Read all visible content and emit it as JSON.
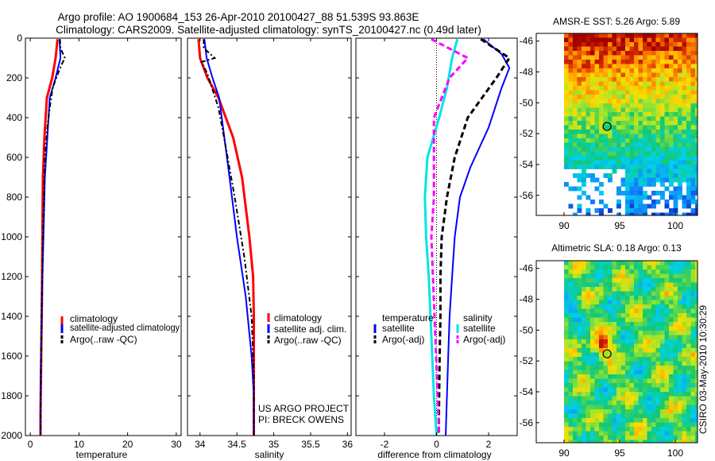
{
  "title_line1": "Argo profile: AO 1900684_153 26-Apr-2010 20100427_88 51.539S 93.863E",
  "title_line2": "Climatology: CARS2009. Satellite-adjusted climatology: synTS_20100427.nc (0.49d later)",
  "colors": {
    "climatology": "#ff0000",
    "satellite": "#0000ff",
    "argo": "#000000",
    "satellite_salinity": "#00e5e5",
    "argo_salinity": "#ff00ff"
  },
  "credit": "CSIRO 03-May-2010 10:30:29",
  "chart_data": [
    {
      "type": "line",
      "xlabel": "temperature",
      "ylabel": "",
      "xlim": [
        -1,
        31
      ],
      "ylim": [
        2000,
        0
      ],
      "xticks": [
        "0",
        "10",
        "20",
        "30"
      ],
      "yticks": [
        "0",
        "200",
        "400",
        "600",
        "800",
        "1000",
        "1200",
        "1400",
        "1600",
        "1800",
        "2000"
      ],
      "legend": [
        "climatology",
        "satellite-adjusted climatology",
        "Argo(..raw -QC)"
      ],
      "series": [
        {
          "name": "climatology",
          "x": [
            5.6,
            5.2,
            4.5,
            3.4,
            2.9,
            2.6,
            2.5,
            2.4,
            2.3,
            2.2,
            2.1,
            2.1
          ],
          "y": [
            5,
            100,
            200,
            300,
            500,
            700,
            1000,
            1300,
            1500,
            1700,
            1900,
            2000
          ]
        },
        {
          "name": "satellite-adjusted climatology",
          "x": [
            6.0,
            6.2,
            5.2,
            4.0,
            3.5,
            3.0,
            2.7,
            2.4,
            2.2,
            2.1,
            2.1
          ],
          "y": [
            5,
            100,
            200,
            300,
            500,
            700,
            1000,
            1300,
            1600,
            1800,
            2000
          ]
        },
        {
          "name": "Argo(..raw -QC)",
          "x": [
            6.1,
            6.2,
            7.1,
            6.5,
            5.8,
            4.6,
            4.0,
            3.5,
            3.0,
            2.8,
            2.6,
            2.4,
            2.2,
            2.1,
            2.1
          ],
          "y": [
            5,
            50,
            100,
            130,
            170,
            250,
            350,
            450,
            600,
            800,
            1000,
            1300,
            1600,
            1800,
            2000
          ]
        }
      ]
    },
    {
      "type": "line",
      "xlabel": "salinity",
      "xlim": [
        33.83,
        36.05
      ],
      "ylim": [
        2000,
        0
      ],
      "xticks": [
        "34",
        "34.5",
        "35",
        "35.5",
        "36"
      ],
      "legend": [
        "climatology",
        "satellite adj. clim.",
        "Argo(..raw -QC)"
      ],
      "annotations": [
        "US ARGO PROJECT",
        "PI: BRECK OWENS"
      ],
      "series": [
        {
          "name": "climatology",
          "x": [
            33.98,
            34.0,
            34.1,
            34.25,
            34.45,
            34.57,
            34.67,
            34.72,
            34.73,
            34.73,
            34.73,
            34.73
          ],
          "y": [
            5,
            100,
            200,
            300,
            500,
            700,
            1000,
            1200,
            1400,
            1600,
            1800,
            2000
          ]
        },
        {
          "name": "satellite adj. clim.",
          "x": [
            34.06,
            34.09,
            34.17,
            34.26,
            34.33,
            34.4,
            34.5,
            34.62,
            34.7,
            34.73,
            34.73
          ],
          "y": [
            5,
            100,
            200,
            300,
            500,
            700,
            1000,
            1300,
            1600,
            1800,
            2000
          ]
        },
        {
          "name": "Argo(..raw -QC)",
          "x": [
            34.05,
            34.05,
            34.2,
            34.02,
            34.1,
            34.25,
            34.35,
            34.47,
            34.6,
            34.7,
            34.73,
            34.73
          ],
          "y": [
            5,
            50,
            100,
            120,
            180,
            350,
            550,
            800,
            1100,
            1400,
            1700,
            2000
          ]
        }
      ]
    },
    {
      "type": "line",
      "xlabel": "difference from climatology",
      "xlim": [
        -3.1,
        3.1
      ],
      "ylim": [
        2000,
        0
      ],
      "xticks": [
        "-2",
        "0",
        "2"
      ],
      "legend": [
        "temperature",
        "satellite",
        "Argo(-adj)",
        "salinity",
        "satellite",
        "Argo(-adj)"
      ],
      "series": [
        {
          "name": "temperature satellite",
          "x": [
            1.8,
            2.5,
            2.8,
            2.5,
            2.0,
            1.3,
            0.9,
            0.7,
            0.6,
            0.5,
            0.45,
            0.4,
            0.35
          ],
          "y": [
            5,
            80,
            150,
            250,
            450,
            650,
            800,
            1000,
            1200,
            1400,
            1600,
            1800,
            2000
          ]
        },
        {
          "name": "temperature Argo(-adj)",
          "x": [
            1.7,
            2.8,
            2.3,
            1.2,
            0.7,
            0.4,
            0.2,
            0.15,
            0.15,
            0.12,
            0.1,
            0.08
          ],
          "y": [
            5,
            100,
            200,
            400,
            600,
            800,
            1000,
            1200,
            1400,
            1600,
            1800,
            2000
          ]
        },
        {
          "name": "salinity satellite",
          "x": [
            0.8,
            0.6,
            0.4,
            0.1,
            -0.35,
            -0.45,
            -0.4,
            -0.3,
            -0.2,
            -0.1,
            0.0
          ],
          "y": [
            5,
            100,
            250,
            400,
            600,
            800,
            1000,
            1200,
            1500,
            1800,
            2000
          ]
        },
        {
          "name": "salinity Argo(-adj)",
          "x": [
            -0.2,
            1.2,
            0.5,
            -0.1,
            -0.1,
            -0.2,
            -0.05,
            0.1
          ],
          "y": [
            5,
            100,
            200,
            400,
            800,
            1000,
            1500,
            2000
          ]
        }
      ]
    },
    {
      "type": "heatmap",
      "title": "AMSR-E SST: 5.26 Argo: 5.89",
      "xlim": [
        87.5,
        102
      ],
      "ylim": [
        -57.3,
        -45.5
      ],
      "xticks": [
        "90",
        "95",
        "100"
      ],
      "yticks": [
        "-46",
        "-48",
        "-50",
        "-52",
        "-54",
        "-56"
      ],
      "marker": {
        "lon": 93.863,
        "lat": -51.539
      }
    },
    {
      "type": "heatmap",
      "title": "Altimetric SLA: 0.18 Argo: 0.13",
      "xlim": [
        87.5,
        102
      ],
      "ylim": [
        -57.3,
        -45.5
      ],
      "xticks": [
        "90",
        "95",
        "100"
      ],
      "yticks": [
        "-46",
        "-48",
        "-50",
        "-52",
        "-54",
        "-56"
      ],
      "marker": {
        "lon": 93.863,
        "lat": -51.539
      }
    }
  ]
}
